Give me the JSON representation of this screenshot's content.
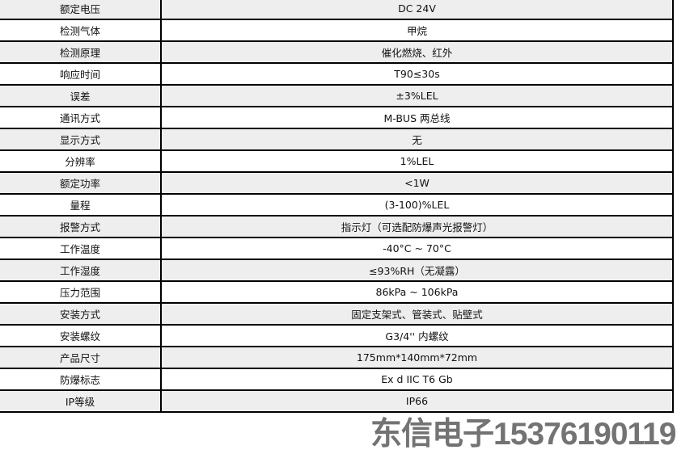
{
  "rows": [
    {
      "k": "额定电压",
      "v": "DC 24V"
    },
    {
      "k": "检测气体",
      "v": "甲烷"
    },
    {
      "k": "检测原理",
      "v": "催化燃烧、红外"
    },
    {
      "k": "响应时间",
      "v": "T90≤30s"
    },
    {
      "k": "误差",
      "v": "±3%LEL"
    },
    {
      "k": "通讯方式",
      "v": "M-BUS 两总线"
    },
    {
      "k": "显示方式",
      "v": "无"
    },
    {
      "k": "分辨率",
      "v": "1%LEL"
    },
    {
      "k": "额定功率",
      "v": "<1W"
    },
    {
      "k": "量程",
      "v": "(3-100)%LEL"
    },
    {
      "k": "报警方式",
      "v": "指示灯（可选配防爆声光报警灯）"
    },
    {
      "k": "工作温度",
      "v": "-40°C ~ 70°C"
    },
    {
      "k": "工作湿度",
      "v": "≤93%RH（无凝露）"
    },
    {
      "k": "压力范围",
      "v": "86kPa ~ 106kPa"
    },
    {
      "k": "安装方式",
      "v": "固定支架式、管装式、贴壁式"
    },
    {
      "k": "安装螺纹",
      "v": "G3/4''  内螺纹"
    },
    {
      "k": "产品尺寸",
      "v": "175mm*140mm*72mm"
    },
    {
      "k": "防爆标志",
      "v": "Ex d IIC T6 Gb"
    },
    {
      "k": "IP等级",
      "v": "IP66"
    }
  ],
  "watermark": "东信电子15376190119"
}
